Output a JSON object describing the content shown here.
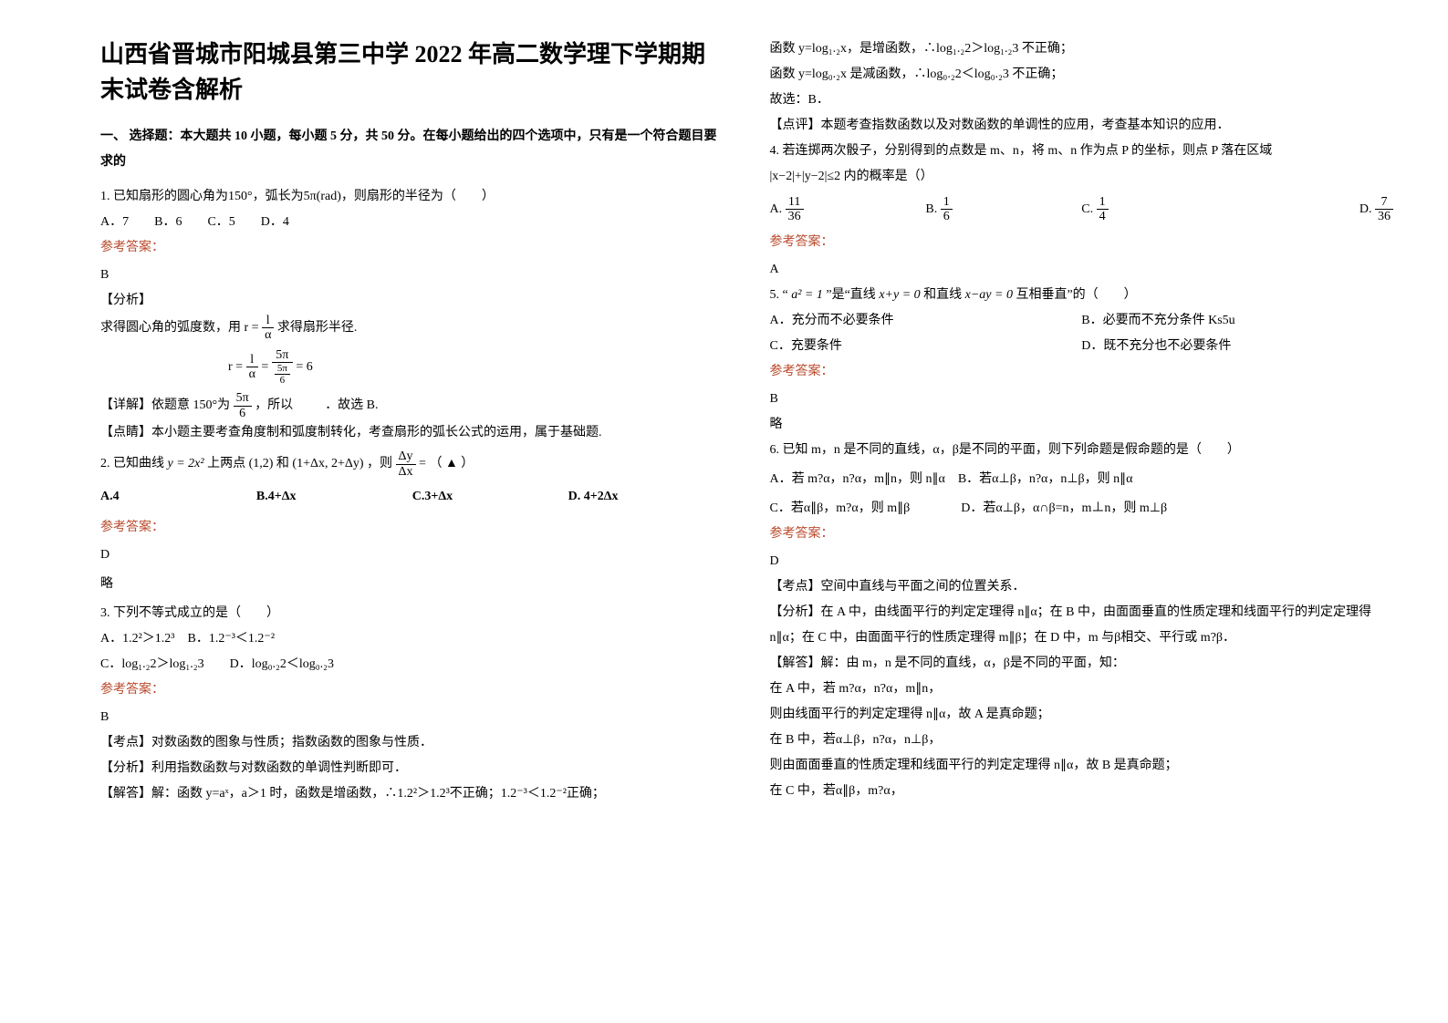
{
  "title": "山西省晋城市阳城县第三中学 2022 年高二数学理下学期期末试卷含解析",
  "section1_head": "一、 选择题：本大题共 10 小题，每小题 5 分，共 50 分。在每小题给出的四个选项中，只有是一个符合题目要求的",
  "q1_stem": "1. 已知扇形的圆心角为150°，弧长为5π(rad)，则扇形的半径为（　　）",
  "q1_opts": "A．7　　B．6　　C．5　　D．4",
  "ref_label": "参考答案：",
  "q1_ans": "B",
  "q1_tag1": "【分析】",
  "q1_line1a": "求得圆心角的弧度数，用",
  "q1_line1b": "求得扇形半径.",
  "q1_line2a": "【详解】依题意 150°为",
  "q1_line2b": "，所以",
  "q1_line2c": "．故选 B.",
  "q1_tag3": "【点睛】本小题主要考查角度制和弧度制转化，考查扇形的弧长公式的运用，属于基础题.",
  "q2_a": "2. 已知曲线",
  "q2_b": "上两点",
  "q2_c": "和",
  "q2_d": "，则",
  "q2_e": "（ ▲ ）",
  "q2_optA": "A.4",
  "q2_optB_pre": "B.",
  "q2_optB": "4+Δx",
  "q2_optC_pre": "C.",
  "q2_optC": "3+Δx",
  "q2_optD_pre": "D. ",
  "q2_optD": "4+2Δx",
  "q2_ans": "D",
  "q2_note": "略",
  "q3_stem": "3. 下列不等式成立的是（　　）",
  "q3_optA": "A．1.2²＞1.2³　B．1.2⁻³＜1.2⁻²",
  "q3_optC": "C．log₁.₂2＞log₁.₂3　　D．log₀.₂2＜log₀.₂3",
  "q3_ans": "B",
  "q3_tag1": "【考点】对数函数的图象与性质；指数函数的图象与性质．",
  "q3_tag2": "【分析】利用指数函数与对数函数的单调性判断即可．",
  "q3_tag3": "【解答】解：函数 y=aˣ，a＞1 时，函数是增函数，∴1.2²＞1.2³不正确；1.2⁻³＜1.2⁻²正确；",
  "r_line1": "函数 y=log₁.₂x，是增函数，∴log₁.₂2＞log₁.₂3 不正确；",
  "r_line2": "函数 y=log₀.₂x 是减函数，∴log₀.₂2＜log₀.₂3 不正确；",
  "r_line3": "故选：B．",
  "r_line4": "【点评】本题考查指数函数以及对数函数的单调性的应用，考查基本知识的应用．",
  "q4_stem": "4. 若连掷两次骰子，分别得到的点数是 m、n，将 m、n 作为点 P 的坐标，则点 P 落在区域",
  "q4_cond": "|x−2|+|y−2|≤2 内的概率是（）",
  "q4_A_pre": "A. ",
  "q4_B_pre": "B. ",
  "q4_C_pre": "C. ",
  "q4_D_pre": "D. ",
  "q4_ans": "A",
  "q5_a": "5. “",
  "q5_b": "”是“直线",
  "q5_c": "和直线",
  "q5_d": "互相垂直”的（　　）",
  "q5_optA": "A．充分而不必要条件",
  "q5_optB": "B．必要而不充分条件 Ks5u",
  "q5_optC": "C．充要条件",
  "q5_optD": "D．既不充分也不必要条件",
  "q5_ans": "B",
  "q5_note": "略",
  "q6_stem": "6. 已知 m，n 是不同的直线，α，β是不同的平面，则下列命题是假命题的是（　　）",
  "q6_optA": "A．若 m?α，n?α，m∥n，则 n∥α　B．若α⊥β，n?α，n⊥β，则 n∥α",
  "q6_optC": "C．若α∥β，m?α，则 m∥β　　　　D．若α⊥β，α∩β=n，m⊥n，则 m⊥β",
  "q6_ans": "D",
  "q6_tag1": "【考点】空间中直线与平面之间的位置关系．",
  "q6_tag2": "【分析】在 A 中，由线面平行的判定定理得 n∥α；在 B 中，由面面垂直的性质定理和线面平行的判定定理得 n∥α；在 C 中，由面面平行的性质定理得 m∥β；在 D 中，m 与β相交、平行或 m?β．",
  "q6_tag3": "【解答】解：由 m，n 是不同的直线，α，β是不同的平面，知：",
  "q6_l1": "在 A 中，若 m?α，n?α，m∥n，",
  "q6_l2": "则由线面平行的判定定理得 n∥α，故 A 是真命题；",
  "q6_l3": "在 B 中，若α⊥β，n?α，n⊥β，",
  "q6_l4": "则由面面垂直的性质定理和线面平行的判定定理得 n∥α，故 B 是真命题；",
  "q6_l5": "在 C 中，若α∥β，m?α，",
  "frac_11_36": {
    "n": "11",
    "d": "36"
  },
  "frac_1_6": {
    "n": "1",
    "d": "6"
  },
  "frac_1_4": {
    "n": "1",
    "d": "4"
  },
  "frac_7_36": {
    "n": "7",
    "d": "36"
  },
  "frac_l_a": {
    "n": "l",
    "d": "α"
  },
  "frac_5pi_6": {
    "n": "5π",
    "d": "6"
  },
  "frac_dy_dx": {
    "n": "Δy",
    "d": "Δx"
  },
  "expr_r_eq": "r =",
  "expr_eq6": "= 6",
  "expr_y2x2": "y = 2x²",
  "expr_p1": "(1,2)",
  "expr_p2": "(1+Δx, 2+Δy)",
  "expr_a2": "a² = 1",
  "expr_xy": "x+y = 0",
  "expr_xay": "x−ay = 0"
}
